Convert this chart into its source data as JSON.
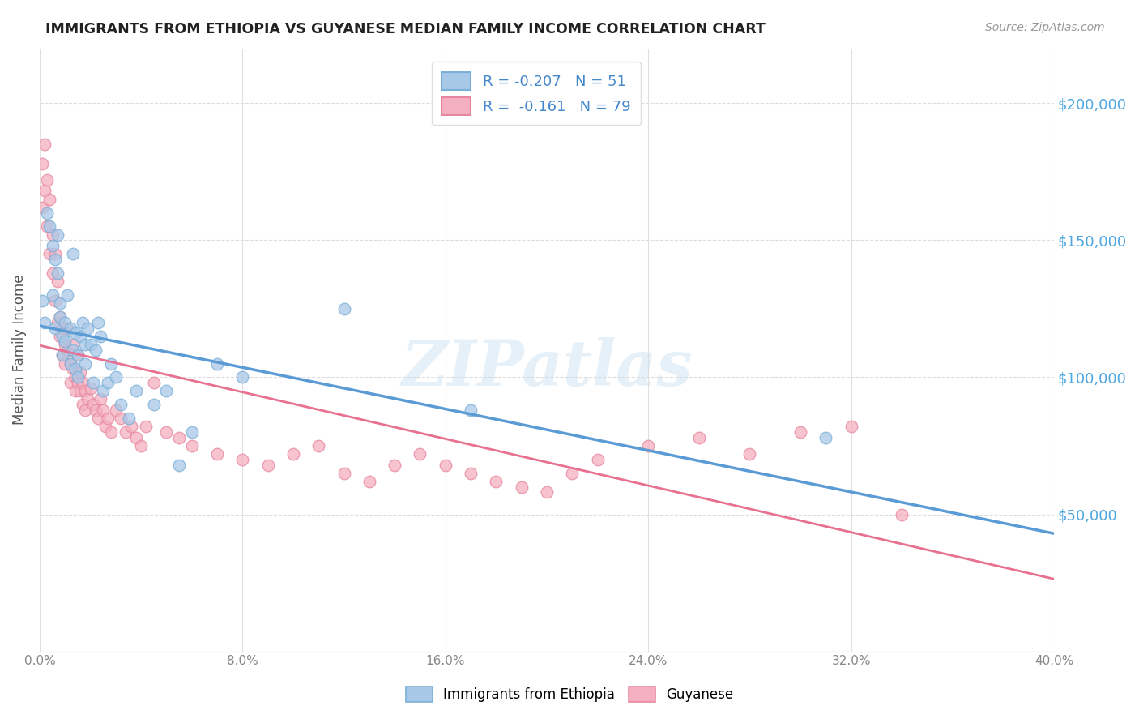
{
  "title": "IMMIGRANTS FROM ETHIOPIA VS GUYANESE MEDIAN FAMILY INCOME CORRELATION CHART",
  "source": "Source: ZipAtlas.com",
  "ylabel": "Median Family Income",
  "yticks": [
    0,
    50000,
    100000,
    150000,
    200000
  ],
  "ytick_labels": [
    "",
    "$50,000",
    "$100,000",
    "$150,000",
    "$200,000"
  ],
  "xlim": [
    0.0,
    0.4
  ],
  "ylim": [
    0,
    220000
  ],
  "legend_r1": "R = -0.207",
  "legend_n1": "N = 51",
  "legend_r2": "R =  -0.161",
  "legend_n2": "N = 79",
  "color_ethiopia": "#a8c8e8",
  "color_guyanese": "#f4afc0",
  "color_ethiopia_edge": "#7ab0d8",
  "color_guyanese_edge": "#e888a0",
  "color_ethiopia_line": "#5b9bd5",
  "color_guyanese_line": "#e87090",
  "watermark": "ZIPatlas",
  "ethiopia_scatter_x": [
    0.001,
    0.002,
    0.003,
    0.004,
    0.005,
    0.005,
    0.006,
    0.006,
    0.007,
    0.007,
    0.008,
    0.008,
    0.009,
    0.009,
    0.01,
    0.01,
    0.011,
    0.012,
    0.012,
    0.013,
    0.013,
    0.014,
    0.014,
    0.015,
    0.015,
    0.016,
    0.017,
    0.018,
    0.018,
    0.019,
    0.02,
    0.021,
    0.022,
    0.023,
    0.024,
    0.025,
    0.027,
    0.028,
    0.03,
    0.032,
    0.035,
    0.038,
    0.045,
    0.05,
    0.055,
    0.06,
    0.07,
    0.08,
    0.12,
    0.17,
    0.31
  ],
  "ethiopia_scatter_y": [
    128000,
    120000,
    160000,
    155000,
    148000,
    130000,
    143000,
    118000,
    152000,
    138000,
    127000,
    122000,
    115000,
    108000,
    120000,
    113000,
    130000,
    118000,
    105000,
    145000,
    110000,
    103000,
    116000,
    100000,
    108000,
    115000,
    120000,
    105000,
    112000,
    118000,
    112000,
    98000,
    110000,
    120000,
    115000,
    95000,
    98000,
    105000,
    100000,
    90000,
    85000,
    95000,
    90000,
    95000,
    68000,
    80000,
    105000,
    100000,
    125000,
    88000,
    78000
  ],
  "guyanese_scatter_x": [
    0.001,
    0.001,
    0.002,
    0.002,
    0.003,
    0.003,
    0.004,
    0.004,
    0.005,
    0.005,
    0.006,
    0.006,
    0.007,
    0.007,
    0.008,
    0.008,
    0.009,
    0.009,
    0.01,
    0.01,
    0.011,
    0.011,
    0.012,
    0.012,
    0.013,
    0.013,
    0.014,
    0.014,
    0.015,
    0.015,
    0.016,
    0.016,
    0.017,
    0.017,
    0.018,
    0.018,
    0.019,
    0.02,
    0.021,
    0.022,
    0.023,
    0.024,
    0.025,
    0.026,
    0.027,
    0.028,
    0.03,
    0.032,
    0.034,
    0.036,
    0.038,
    0.04,
    0.042,
    0.045,
    0.05,
    0.055,
    0.06,
    0.07,
    0.08,
    0.09,
    0.1,
    0.11,
    0.12,
    0.13,
    0.14,
    0.15,
    0.16,
    0.17,
    0.18,
    0.19,
    0.2,
    0.21,
    0.22,
    0.24,
    0.26,
    0.28,
    0.3,
    0.32,
    0.34
  ],
  "guyanese_scatter_y": [
    178000,
    162000,
    185000,
    168000,
    172000,
    155000,
    165000,
    145000,
    152000,
    138000,
    145000,
    128000,
    135000,
    120000,
    122000,
    115000,
    118000,
    108000,
    112000,
    105000,
    118000,
    110000,
    105000,
    98000,
    112000,
    103000,
    100000,
    95000,
    108000,
    98000,
    102000,
    95000,
    98000,
    90000,
    95000,
    88000,
    92000,
    96000,
    90000,
    88000,
    85000,
    92000,
    88000,
    82000,
    85000,
    80000,
    88000,
    85000,
    80000,
    82000,
    78000,
    75000,
    82000,
    98000,
    80000,
    78000,
    75000,
    72000,
    70000,
    68000,
    72000,
    75000,
    65000,
    62000,
    68000,
    72000,
    68000,
    65000,
    62000,
    60000,
    58000,
    65000,
    70000,
    75000,
    78000,
    72000,
    80000,
    82000,
    50000
  ],
  "xtick_positions": [
    0.0,
    0.08,
    0.16,
    0.24,
    0.32,
    0.4
  ],
  "xtick_labels": [
    "0.0%",
    "8.0%",
    "16.0%",
    "24.0%",
    "32.0%",
    "40.0%"
  ]
}
